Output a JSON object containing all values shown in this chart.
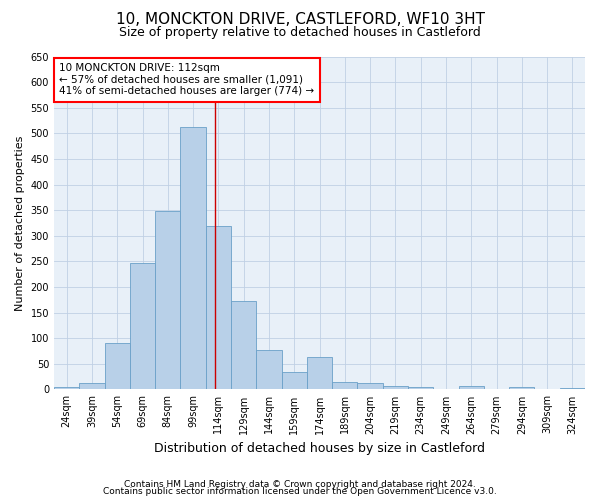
{
  "title": "10, MONCKTON DRIVE, CASTLEFORD, WF10 3HT",
  "subtitle": "Size of property relative to detached houses in Castleford",
  "xlabel": "Distribution of detached houses by size in Castleford",
  "ylabel": "Number of detached properties",
  "bar_color": "#b8d0e8",
  "bar_edge_color": "#6aa0c8",
  "categories": [
    "24sqm",
    "39sqm",
    "54sqm",
    "69sqm",
    "84sqm",
    "99sqm",
    "114sqm",
    "129sqm",
    "144sqm",
    "159sqm",
    "174sqm",
    "189sqm",
    "204sqm",
    "219sqm",
    "234sqm",
    "249sqm",
    "264sqm",
    "279sqm",
    "294sqm",
    "309sqm",
    "324sqm"
  ],
  "values": [
    5,
    13,
    91,
    246,
    348,
    512,
    320,
    172,
    77,
    35,
    63,
    15,
    12,
    7,
    4,
    0,
    6,
    0,
    4,
    0,
    3
  ],
  "ylim": [
    0,
    650
  ],
  "yticks": [
    0,
    50,
    100,
    150,
    200,
    250,
    300,
    350,
    400,
    450,
    500,
    550,
    600,
    650
  ],
  "annotation_box_text": "10 MONCKTON DRIVE: 112sqm\n← 57% of detached houses are smaller (1,091)\n41% of semi-detached houses are larger (774) →",
  "footer_line1": "Contains HM Land Registry data © Crown copyright and database right 2024.",
  "footer_line2": "Contains public sector information licensed under the Open Government Licence v3.0.",
  "bg_color": "#ffffff",
  "plot_bg_color": "#e8f0f8",
  "grid_color": "#c0d0e4",
  "title_fontsize": 11,
  "subtitle_fontsize": 9,
  "xlabel_fontsize": 9,
  "ylabel_fontsize": 8,
  "tick_fontsize": 7,
  "ann_fontsize": 7.5,
  "footer_fontsize": 6.5
}
